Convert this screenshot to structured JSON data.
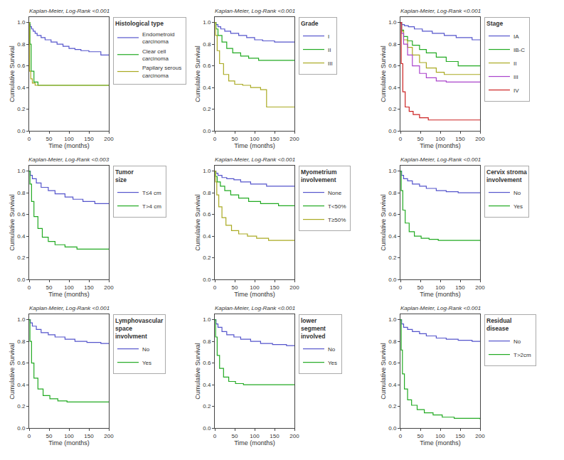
{
  "chart_data": [
    {
      "type": "step",
      "title": "Kaplan-Meier, Log-Rank <0.001",
      "legend_title": "Histological type",
      "xlabel": "Time (months)",
      "ylabel": "Cumulative Survival",
      "xlim": [
        0,
        200
      ],
      "ylim": [
        0.0,
        1.05
      ],
      "xticks": [
        0,
        50,
        100,
        150,
        200
      ],
      "yticks": [
        {
          "value": 0.0,
          "label": "0.0"
        },
        0.2,
        0.4,
        0.6,
        0.8,
        {
          "value": 1.0,
          "label": "1.0"
        }
      ],
      "grid": false,
      "legend": "right",
      "series": [
        {
          "name": "Endometroid\ncarcinoma",
          "color": "#5555cc",
          "x": [
            0,
            1,
            3,
            6,
            10,
            15,
            20,
            30,
            40,
            55,
            70,
            85,
            100,
            115,
            130,
            150,
            180,
            200
          ],
          "values": [
            1.0,
            0.98,
            0.96,
            0.94,
            0.92,
            0.9,
            0.88,
            0.86,
            0.84,
            0.82,
            0.8,
            0.78,
            0.76,
            0.75,
            0.74,
            0.73,
            0.7,
            0.7
          ]
        },
        {
          "name": "Clear cell\ncarcinoma",
          "color": "#22aa22",
          "x": [
            0,
            2,
            5,
            12,
            22,
            38,
            200
          ],
          "values": [
            1.0,
            0.8,
            0.55,
            0.45,
            0.42,
            0.42,
            0.42
          ]
        },
        {
          "name": "Papilary serous\ncarcinoma",
          "color": "#aaaa22",
          "x": [
            0,
            1,
            4,
            8,
            15,
            25,
            200
          ],
          "values": [
            1.0,
            0.55,
            0.48,
            0.44,
            0.42,
            0.42,
            0.42
          ]
        }
      ]
    },
    {
      "type": "step",
      "title": "Kaplan-Meier, Log-Rank <0.001",
      "legend_title": "Grade",
      "xlabel": "Time (months)",
      "ylabel": "Cumulative Survival",
      "xlim": [
        0,
        200
      ],
      "ylim": [
        0.0,
        1.05
      ],
      "xticks": [
        0,
        50,
        100,
        150,
        200
      ],
      "yticks": [
        {
          "value": 0.0,
          "label": "0.0"
        },
        0.2,
        0.4,
        0.6,
        0.8,
        {
          "value": 1.0,
          "label": "1.0"
        }
      ],
      "grid": false,
      "legend": "right",
      "series": [
        {
          "name": "I",
          "color": "#5555cc",
          "x": [
            0,
            3,
            8,
            15,
            25,
            40,
            60,
            80,
            100,
            120,
            150,
            200
          ],
          "values": [
            1.0,
            0.98,
            0.96,
            0.94,
            0.92,
            0.9,
            0.88,
            0.86,
            0.84,
            0.83,
            0.82,
            0.82
          ]
        },
        {
          "name": "II",
          "color": "#22aa22",
          "x": [
            0,
            3,
            8,
            18,
            30,
            45,
            65,
            85,
            110,
            145,
            200
          ],
          "values": [
            1.0,
            0.94,
            0.88,
            0.82,
            0.76,
            0.72,
            0.69,
            0.67,
            0.65,
            0.65,
            0.65
          ]
        },
        {
          "name": "III",
          "color": "#aaaa22",
          "x": [
            0,
            2,
            6,
            12,
            22,
            35,
            50,
            70,
            90,
            115,
            130,
            160,
            200
          ],
          "values": [
            1.0,
            0.88,
            0.74,
            0.62,
            0.52,
            0.46,
            0.43,
            0.42,
            0.4,
            0.38,
            0.22,
            0.22,
            0.22
          ]
        }
      ]
    },
    {
      "type": "step",
      "title": "Kaplan-Meier, Log-Rank <0.001",
      "legend_title": "Stage",
      "xlabel": "Time (months)",
      "ylabel": "Cumulative Survival",
      "xlim": [
        0,
        200
      ],
      "ylim": [
        0.0,
        1.05
      ],
      "xticks": [
        0,
        50,
        100,
        150,
        200
      ],
      "yticks": [
        {
          "value": 0.0,
          "label": "0.0"
        },
        0.2,
        0.4,
        0.6,
        0.8,
        {
          "value": 1.0,
          "label": "1.0"
        }
      ],
      "grid": false,
      "legend": "right",
      "series": [
        {
          "name": "IA",
          "color": "#5555cc",
          "x": [
            0,
            3,
            10,
            20,
            35,
            55,
            80,
            110,
            140,
            180,
            200
          ],
          "values": [
            1.0,
            0.98,
            0.97,
            0.96,
            0.94,
            0.92,
            0.9,
            0.88,
            0.86,
            0.84,
            0.84
          ]
        },
        {
          "name": "IB-C",
          "color": "#22aa22",
          "x": [
            0,
            3,
            8,
            18,
            30,
            48,
            65,
            90,
            115,
            145,
            200
          ],
          "values": [
            1.0,
            0.93,
            0.87,
            0.83,
            0.79,
            0.75,
            0.72,
            0.68,
            0.64,
            0.6,
            0.6
          ]
        },
        {
          "name": "II",
          "color": "#aaaa22",
          "x": [
            0,
            3,
            8,
            18,
            30,
            48,
            65,
            90,
            110,
            130,
            200
          ],
          "values": [
            1.0,
            0.92,
            0.84,
            0.77,
            0.7,
            0.63,
            0.58,
            0.54,
            0.52,
            0.52,
            0.52
          ]
        },
        {
          "name": "III",
          "color": "#aa44cc",
          "x": [
            0,
            3,
            8,
            18,
            30,
            48,
            65,
            90,
            115,
            130,
            200
          ],
          "values": [
            1.0,
            0.9,
            0.8,
            0.7,
            0.6,
            0.53,
            0.49,
            0.46,
            0.45,
            0.45,
            0.45
          ]
        },
        {
          "name": "IV",
          "color": "#cc2222",
          "x": [
            0,
            2,
            6,
            12,
            22,
            32,
            48,
            70,
            100,
            200
          ],
          "values": [
            1.0,
            0.62,
            0.36,
            0.22,
            0.18,
            0.15,
            0.12,
            0.1,
            0.1,
            0.1
          ]
        }
      ]
    },
    {
      "type": "step",
      "title": "Kaplan-Meier, Log-Rank <0.003",
      "legend_title": "Tumor\nsize",
      "xlabel": "Time (months)",
      "ylabel": "Cumulative Survival",
      "xlim": [
        0,
        200
      ],
      "ylim": [
        0.0,
        1.05
      ],
      "xticks": [
        0,
        50,
        100,
        150,
        200
      ],
      "yticks": [
        {
          "value": 0.0,
          "label": "0.0"
        },
        0.2,
        0.4,
        0.6,
        0.8,
        {
          "value": 1.0,
          "label": "1.0"
        }
      ],
      "grid": false,
      "legend": "right",
      "series": [
        {
          "name": "T≤4 cm",
          "color": "#5555cc",
          "x": [
            0,
            3,
            8,
            18,
            30,
            48,
            65,
            90,
            110,
            135,
            165,
            200
          ],
          "values": [
            1.0,
            0.96,
            0.93,
            0.89,
            0.85,
            0.82,
            0.79,
            0.76,
            0.74,
            0.72,
            0.7,
            0.7
          ]
        },
        {
          "name": "T>4 cm",
          "color": "#22aa22",
          "x": [
            0,
            2,
            6,
            12,
            22,
            33,
            48,
            65,
            90,
            120,
            200
          ],
          "values": [
            1.0,
            0.88,
            0.72,
            0.58,
            0.47,
            0.39,
            0.35,
            0.32,
            0.3,
            0.28,
            0.28
          ]
        }
      ]
    },
    {
      "type": "step",
      "title": "Kaplan-Meier, Log-Rank <0.001",
      "legend_title": "Myometrium\ninvolvement",
      "xlabel": "Time (months)",
      "ylabel": "Cumulative Survival",
      "xlim": [
        0,
        200
      ],
      "ylim": [
        0.0,
        1.05
      ],
      "xticks": [
        0,
        50,
        100,
        150,
        200
      ],
      "yticks": [
        {
          "value": 0.0,
          "label": "0.0"
        },
        0.2,
        0.4,
        0.6,
        0.8,
        {
          "value": 1.0,
          "label": "1.0"
        }
      ],
      "grid": false,
      "legend": "right",
      "series": [
        {
          "name": "None",
          "color": "#5555cc",
          "x": [
            0,
            3,
            8,
            18,
            30,
            48,
            65,
            90,
            130,
            200
          ],
          "values": [
            1.0,
            0.98,
            0.96,
            0.94,
            0.93,
            0.92,
            0.9,
            0.88,
            0.86,
            0.86
          ]
        },
        {
          "name": "T<50%",
          "color": "#22aa22",
          "x": [
            0,
            2,
            6,
            14,
            25,
            40,
            60,
            85,
            115,
            160,
            200
          ],
          "values": [
            1.0,
            0.95,
            0.9,
            0.86,
            0.82,
            0.78,
            0.75,
            0.72,
            0.7,
            0.68,
            0.68
          ]
        },
        {
          "name": "T≥50%",
          "color": "#aaaa22",
          "x": [
            0,
            2,
            5,
            10,
            18,
            28,
            42,
            60,
            82,
            105,
            135,
            200
          ],
          "values": [
            1.0,
            0.9,
            0.78,
            0.67,
            0.57,
            0.5,
            0.45,
            0.42,
            0.4,
            0.38,
            0.36,
            0.36
          ]
        }
      ]
    },
    {
      "type": "step",
      "title": "Kaplan-Meier, Log-Rank <0.001",
      "legend_title": "Cervix stroma\ninvolvement",
      "xlabel": "Time (months)",
      "ylabel": "Cumulative Survival",
      "xlim": [
        0,
        200
      ],
      "ylim": [
        0.0,
        1.05
      ],
      "xticks": [
        0,
        50,
        100,
        150,
        200
      ],
      "yticks": [
        {
          "value": 0.0,
          "label": "0.0"
        },
        0.2,
        0.4,
        0.6,
        0.8,
        {
          "value": 1.0,
          "label": "1.0"
        }
      ],
      "grid": false,
      "legend": "right",
      "series": [
        {
          "name": "No",
          "color": "#5555cc",
          "x": [
            0,
            3,
            8,
            18,
            30,
            48,
            65,
            90,
            115,
            145,
            200
          ],
          "values": [
            1.0,
            0.96,
            0.93,
            0.91,
            0.88,
            0.86,
            0.84,
            0.82,
            0.81,
            0.8,
            0.8
          ]
        },
        {
          "name": "Yes",
          "color": "#22aa22",
          "x": [
            0,
            2,
            6,
            12,
            22,
            35,
            52,
            72,
            95,
            115,
            145,
            200
          ],
          "values": [
            1.0,
            0.82,
            0.64,
            0.52,
            0.44,
            0.4,
            0.38,
            0.37,
            0.36,
            0.36,
            0.36,
            0.36
          ]
        }
      ]
    },
    {
      "type": "step",
      "title": "Kaplan-Meier, Log-Rank <0.001",
      "legend_title": "Lymphovascular\nspace\ninvolvment",
      "xlabel": "Time (months)",
      "ylabel": "Cumulative Survival",
      "xlim": [
        0,
        200
      ],
      "ylim": [
        0.0,
        1.05
      ],
      "xticks": [
        0,
        50,
        100,
        150,
        200
      ],
      "yticks": [
        {
          "value": 0.0,
          "label": "0.0"
        },
        0.2,
        0.4,
        0.6,
        0.8,
        {
          "value": 1.0,
          "label": "1.0"
        }
      ],
      "grid": false,
      "legend": "right",
      "series": [
        {
          "name": "No",
          "color": "#5555cc",
          "x": [
            0,
            3,
            8,
            18,
            30,
            48,
            65,
            90,
            115,
            145,
            180,
            200
          ],
          "values": [
            1.0,
            0.97,
            0.94,
            0.91,
            0.88,
            0.86,
            0.84,
            0.82,
            0.8,
            0.79,
            0.78,
            0.78
          ]
        },
        {
          "name": "Yes",
          "color": "#22aa22",
          "x": [
            0,
            2,
            6,
            12,
            22,
            35,
            52,
            72,
            95,
            115,
            145,
            200
          ],
          "values": [
            1.0,
            0.8,
            0.6,
            0.46,
            0.36,
            0.3,
            0.27,
            0.25,
            0.24,
            0.24,
            0.24,
            0.24
          ]
        }
      ]
    },
    {
      "type": "step",
      "title": "Kaplan-Meier, Log-Rank <0.001",
      "legend_title": "lower\nsegment\ninvolved",
      "xlabel": "Time (months)",
      "ylabel": "Cumulative Survival",
      "xlim": [
        0,
        200
      ],
      "ylim": [
        0.0,
        1.05
      ],
      "xticks": [
        0,
        50,
        100,
        150,
        200
      ],
      "yticks": [
        {
          "value": 0.0,
          "label": "0.0"
        },
        0.2,
        0.4,
        0.6,
        0.8,
        {
          "value": 1.0,
          "label": "1.0"
        }
      ],
      "grid": false,
      "legend": "right",
      "series": [
        {
          "name": "No",
          "color": "#5555cc",
          "x": [
            0,
            3,
            8,
            18,
            30,
            48,
            65,
            90,
            115,
            145,
            180,
            200
          ],
          "values": [
            1.0,
            0.96,
            0.93,
            0.89,
            0.86,
            0.84,
            0.82,
            0.8,
            0.78,
            0.77,
            0.76,
            0.76
          ]
        },
        {
          "name": "Yes",
          "color": "#22aa22",
          "x": [
            0,
            2,
            6,
            12,
            22,
            35,
            52,
            72,
            95,
            120,
            155,
            200
          ],
          "values": [
            1.0,
            0.84,
            0.67,
            0.55,
            0.47,
            0.43,
            0.41,
            0.4,
            0.4,
            0.4,
            0.4,
            0.4
          ]
        }
      ]
    },
    {
      "type": "step",
      "title": "Kaplan-Meier, Log-Rank <0.001",
      "legend_title": "Residual\ndisease",
      "xlabel": "Time (months)",
      "ylabel": "Cumulative Survival",
      "xlim": [
        0,
        200
      ],
      "ylim": [
        0.0,
        1.05
      ],
      "xticks": [
        0,
        50,
        100,
        150,
        200
      ],
      "yticks": [
        {
          "value": 0.0,
          "label": "0.0"
        },
        0.2,
        0.4,
        0.6,
        0.8,
        {
          "value": 1.0,
          "label": "1.0"
        }
      ],
      "grid": false,
      "legend": "right",
      "series": [
        {
          "name": "No",
          "color": "#5555cc",
          "x": [
            0,
            3,
            8,
            18,
            30,
            48,
            65,
            90,
            115,
            145,
            180,
            200
          ],
          "values": [
            1.0,
            0.96,
            0.93,
            0.91,
            0.89,
            0.87,
            0.85,
            0.83,
            0.82,
            0.81,
            0.8,
            0.8
          ]
        },
        {
          "name": "T>2cm",
          "color": "#22aa22",
          "x": [
            0,
            2,
            5,
            10,
            18,
            28,
            42,
            60,
            82,
            105,
            135,
            200
          ],
          "values": [
            1.0,
            0.72,
            0.5,
            0.36,
            0.26,
            0.21,
            0.17,
            0.14,
            0.12,
            0.1,
            0.09,
            0.08
          ]
        }
      ]
    }
  ]
}
